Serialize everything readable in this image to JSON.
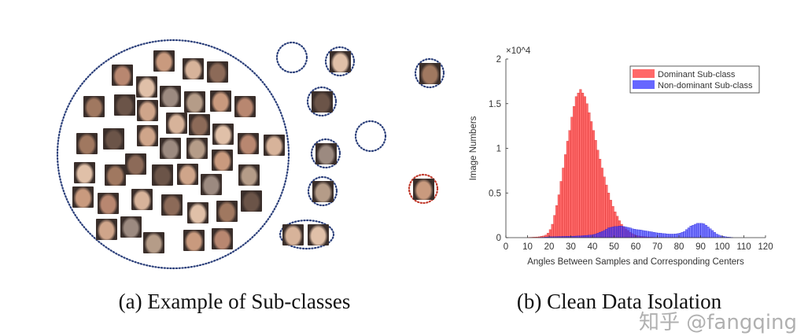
{
  "panel_a": {
    "caption": "(a) Example of Sub-classes",
    "dominant_cluster_faces": 42,
    "colors": {
      "cluster_border": "#2b3f7a",
      "noisy_border": "#c0392b"
    }
  },
  "panel_b": {
    "caption": "(b) Clean Data Isolation"
  },
  "watermark": "知乎 @fangqing",
  "chart_data": {
    "type": "bar",
    "title": "",
    "xlabel": "Angles Between Samples and Corresponding Centers",
    "ylabel": "Image Numbers",
    "y_multiplier": "×10^4",
    "xlim": [
      0,
      120
    ],
    "ylim": [
      0,
      20000
    ],
    "x_ticks": [
      "0",
      "10",
      "20",
      "30",
      "40",
      "50",
      "60",
      "70",
      "80",
      "90",
      "100",
      "110",
      "120"
    ],
    "y_ticks": [
      "0",
      "0.5",
      "1",
      "1.5",
      "2"
    ],
    "y_exponent": "4",
    "y_multiplier_base": "×10",
    "grid": false,
    "legend_position": "top-right",
    "bin_width": 1,
    "series": [
      {
        "name": "Dominant Sub-class",
        "color": "#ff4d4d",
        "bin_start": 10,
        "values": [
          30,
          40,
          50,
          60,
          80,
          100,
          150,
          200,
          300,
          500,
          900,
          1500,
          2500,
          3600,
          4800,
          6300,
          7800,
          9300,
          10800,
          12000,
          13500,
          14700,
          15800,
          16200,
          16600,
          16200,
          15800,
          15000,
          14000,
          13000,
          12000,
          10900,
          9800,
          8800,
          7800,
          6800,
          5900,
          5000,
          4200,
          3500,
          2900,
          2400,
          1900,
          1500,
          1200,
          1000,
          800,
          600,
          450,
          350,
          250,
          200,
          160,
          130,
          100,
          80,
          60,
          50,
          40,
          30,
          25,
          20,
          15,
          10,
          10,
          10,
          10,
          10,
          10,
          10,
          10,
          10,
          10,
          10,
          10,
          10,
          10,
          10,
          10,
          10,
          5,
          5,
          5,
          5,
          5
        ]
      },
      {
        "name": "Non-dominant Sub-class",
        "color": "#3333ff",
        "bin_start": 10,
        "values": [
          0,
          0,
          0,
          0,
          0,
          10,
          20,
          40,
          60,
          80,
          100,
          100,
          120,
          120,
          130,
          130,
          140,
          140,
          150,
          150,
          160,
          170,
          180,
          190,
          200,
          220,
          240,
          260,
          280,
          300,
          350,
          400,
          500,
          600,
          700,
          800,
          950,
          1100,
          1150,
          1200,
          1250,
          1250,
          1300,
          1300,
          1250,
          1200,
          1150,
          1100,
          1000,
          950,
          900,
          880,
          850,
          800,
          760,
          720,
          680,
          650,
          600,
          560,
          520,
          500,
          470,
          450,
          420,
          400,
          400,
          400,
          420,
          450,
          500,
          600,
          700,
          900,
          1100,
          1300,
          1400,
          1500,
          1600,
          1600,
          1600,
          1550,
          1400,
          1200,
          1000,
          800,
          600,
          400,
          300,
          200,
          150,
          100,
          70,
          50,
          30
        ]
      }
    ]
  }
}
